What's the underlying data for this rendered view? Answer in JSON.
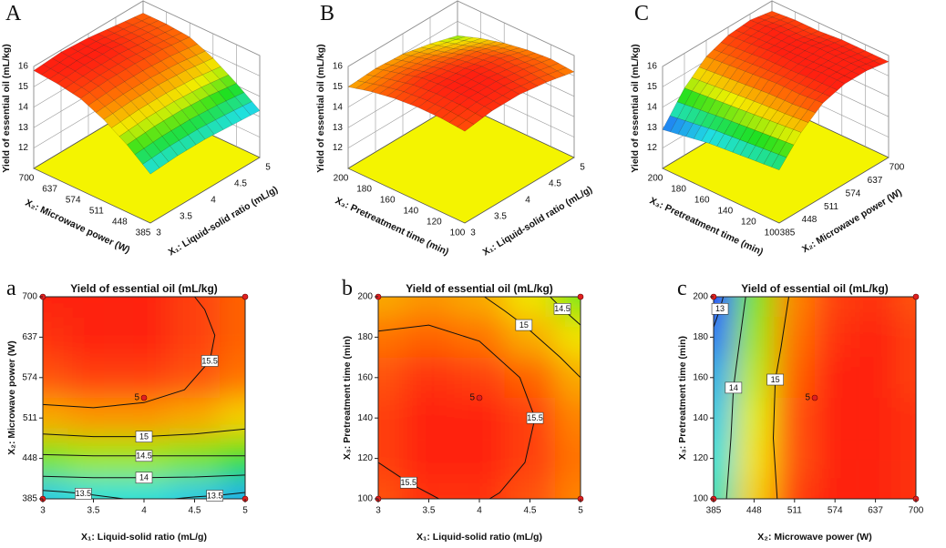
{
  "chart_data": [
    {
      "type": "surface",
      "panel": "A",
      "zlabel": "Yield of essential oil (mL/kg)",
      "xlabel": "X₁: Liquid-solid ratio (mL/g)",
      "ylabel": "X₂: Microwave power (W)",
      "xlim": [
        3,
        5
      ],
      "xticks": [
        3,
        3.5,
        4,
        4.5,
        5
      ],
      "ylim": [
        385,
        700
      ],
      "yticks": [
        385,
        448,
        511,
        574,
        637,
        700
      ],
      "zlim": [
        11,
        16
      ],
      "zticks": [
        12,
        13,
        14,
        15,
        16
      ],
      "colormap": [
        "#2040ff",
        "#20e0e0",
        "#20e020",
        "#f0f000",
        "#ff8000",
        "#ff2010"
      ],
      "color_range": [
        12.9,
        15.8
      ],
      "z": [
        [
          13.4,
          13.5,
          13.5,
          13.4,
          13.3
        ],
        [
          14.3,
          14.4,
          14.4,
          14.3,
          14.1
        ],
        [
          15.0,
          15.1,
          15.1,
          15.0,
          14.8
        ],
        [
          15.5,
          15.6,
          15.6,
          15.5,
          15.3
        ],
        [
          15.7,
          15.8,
          15.8,
          15.6,
          15.4
        ],
        [
          15.8,
          15.9,
          15.8,
          15.6,
          15.4
        ]
      ]
    },
    {
      "type": "surface",
      "panel": "B",
      "zlabel": "Yield of essential oil (mL/kg)",
      "xlabel": "X₁: Liquid-solid ratio (mL/g)",
      "ylabel": "X₃: Pretreatment time (min)",
      "xlim": [
        3,
        5
      ],
      "xticks": [
        3,
        3.5,
        4,
        4.5,
        5
      ],
      "ylim": [
        100,
        200
      ],
      "yticks": [
        100,
        120,
        140,
        160,
        180,
        200
      ],
      "zlim": [
        11,
        16
      ],
      "zticks": [
        12,
        13,
        14,
        15,
        16
      ],
      "colormap": [
        "#2040ff",
        "#20e0e0",
        "#20e020",
        "#f0f000",
        "#ff8000",
        "#ff2010"
      ],
      "color_range": [
        12.9,
        15.8
      ],
      "z": [
        [
          15.5,
          15.7,
          15.7,
          15.5,
          15.2
        ],
        [
          15.6,
          15.8,
          15.8,
          15.6,
          15.3
        ],
        [
          15.6,
          15.8,
          15.8,
          15.6,
          15.2
        ],
        [
          15.5,
          15.7,
          15.6,
          15.4,
          15.0
        ],
        [
          15.3,
          15.4,
          15.3,
          15.0,
          14.7
        ],
        [
          15.0,
          15.1,
          15.0,
          14.7,
          14.3
        ]
      ]
    },
    {
      "type": "surface",
      "panel": "C",
      "zlabel": "Yield of essential oil (mL/kg)",
      "xlabel": "X₂: Microwave power (W)",
      "ylabel": "X₃: Pretreatment time (min)",
      "xlim": [
        385,
        700
      ],
      "xticks": [
        385,
        448,
        511,
        574,
        637,
        700
      ],
      "ylim": [
        100,
        200
      ],
      "yticks": [
        100,
        120,
        140,
        160,
        180,
        200
      ],
      "zlim": [
        11,
        16
      ],
      "zticks": [
        12,
        13,
        14,
        15,
        16
      ],
      "colormap": [
        "#2040ff",
        "#20e0e0",
        "#20e020",
        "#f0f000",
        "#ff8000",
        "#ff2010"
      ],
      "color_range": [
        12.9,
        15.8
      ],
      "z": [
        [
          13.6,
          14.8,
          15.6,
          15.9,
          15.9,
          15.7
        ],
        [
          13.5,
          14.7,
          15.5,
          15.9,
          15.9,
          15.7
        ],
        [
          13.4,
          14.6,
          15.5,
          15.8,
          15.9,
          15.7
        ],
        [
          13.3,
          14.5,
          15.4,
          15.8,
          15.8,
          15.6
        ],
        [
          13.1,
          14.4,
          15.3,
          15.7,
          15.8,
          15.6
        ],
        [
          12.9,
          14.3,
          15.2,
          15.6,
          15.7,
          15.5
        ]
      ]
    },
    {
      "type": "contour",
      "panel": "a",
      "title": "Yield of essential oil (mL/kg)",
      "xlabel": "X₁: Liquid-solid ratio (mL/g)",
      "ylabel": "X₂: Microwave power (W)",
      "xlim": [
        3,
        5
      ],
      "xticks": [
        3,
        3.5,
        4,
        4.5,
        5
      ],
      "ylim": [
        385,
        700
      ],
      "yticks": [
        385,
        448,
        511,
        574,
        637,
        700
      ],
      "colormap": [
        "#2040ff",
        "#20e0e0",
        "#20e020",
        "#f0f000",
        "#ff8000",
        "#ff2010"
      ],
      "color_range": [
        12.9,
        15.8
      ],
      "z": [
        [
          13.4,
          13.5,
          13.5,
          13.4,
          13.3
        ],
        [
          14.3,
          14.4,
          14.4,
          14.3,
          14.1
        ],
        [
          15.0,
          15.1,
          15.1,
          15.0,
          14.8
        ],
        [
          15.5,
          15.6,
          15.6,
          15.5,
          15.3
        ],
        [
          15.7,
          15.8,
          15.8,
          15.6,
          15.4
        ],
        [
          15.8,
          15.9,
          15.8,
          15.6,
          15.4
        ]
      ],
      "contours": [
        {
          "level": 15.5,
          "x": [
            3,
            3.5,
            4,
            4.4,
            4.65,
            4.7,
            4.6,
            4.5
          ],
          "y": [
            532,
            527,
            535,
            555,
            600,
            640,
            680,
            700
          ]
        },
        {
          "level": 15,
          "x": [
            3,
            3.5,
            4,
            4.5,
            5
          ],
          "y": [
            486,
            482,
            482,
            486,
            494
          ]
        },
        {
          "level": 14.5,
          "x": [
            3,
            3.5,
            4,
            4.5,
            5
          ],
          "y": [
            454,
            452,
            452,
            452,
            452
          ]
        },
        {
          "level": 14,
          "x": [
            3,
            3.5,
            4,
            4.5,
            5
          ],
          "y": [
            420,
            418,
            418,
            419,
            422
          ]
        },
        {
          "level": 13.5,
          "x": [
            3,
            3.2,
            3.4,
            3.8,
            null,
            4.3,
            4.5,
            4.7,
            5
          ],
          "y": [
            398,
            396,
            393,
            385,
            null,
            385,
            388,
            390,
            395
          ]
        }
      ],
      "design_points": {
        "x": [
          3,
          5,
          3,
          5,
          4
        ],
        "y": [
          385,
          385,
          700,
          700,
          542.5
        ]
      },
      "center_runs": 5
    },
    {
      "type": "contour",
      "panel": "b",
      "title": "Yield of essential oil (mL/kg)",
      "xlabel": "X₁: Liquid-solid ratio (mL/g)",
      "ylabel": "X₃: Pretreatment time (min)",
      "xlim": [
        3,
        5
      ],
      "xticks": [
        3,
        3.5,
        4,
        4.5,
        5
      ],
      "ylim": [
        100,
        200
      ],
      "yticks": [
        100,
        120,
        140,
        160,
        180,
        200
      ],
      "colormap": [
        "#2040ff",
        "#20e0e0",
        "#20e020",
        "#f0f000",
        "#ff8000",
        "#ff2010"
      ],
      "color_range": [
        12.9,
        15.8
      ],
      "z": [
        [
          15.5,
          15.7,
          15.7,
          15.5,
          15.2
        ],
        [
          15.6,
          15.8,
          15.8,
          15.6,
          15.3
        ],
        [
          15.6,
          15.8,
          15.8,
          15.6,
          15.2
        ],
        [
          15.5,
          15.7,
          15.6,
          15.4,
          15.0
        ],
        [
          15.3,
          15.4,
          15.3,
          15.0,
          14.7
        ],
        [
          15.0,
          15.1,
          15.0,
          14.7,
          14.3
        ]
      ],
      "contours": [
        {
          "level": 15.5,
          "x": [
            3,
            3.5,
            4,
            4.4,
            4.55,
            4.45,
            4.2,
            4.1,
            null,
            3.6,
            3.3,
            3
          ],
          "y": [
            183,
            186,
            178,
            160,
            140,
            118,
            103,
            100,
            null,
            100,
            108,
            118
          ]
        },
        {
          "level": 15,
          "x": [
            4.05,
            4.25,
            4.44,
            4.8,
            5
          ],
          "y": [
            200,
            193,
            186,
            170,
            160
          ]
        },
        {
          "level": 14.5,
          "x": [
            4.7,
            4.82,
            5
          ],
          "y": [
            200,
            194,
            186
          ]
        }
      ],
      "design_points": {
        "x": [
          3,
          5,
          3,
          5,
          4
        ],
        "y": [
          100,
          100,
          200,
          200,
          150
        ]
      },
      "center_runs": 5
    },
    {
      "type": "contour",
      "panel": "c",
      "title": "Yield of essential oil (mL/kg)",
      "xlabel": "X₂: Microwave power (W)",
      "ylabel": "X₃: Pretreatment time (min)",
      "xlim": [
        385,
        700
      ],
      "xticks": [
        385,
        448,
        511,
        574,
        637,
        700
      ],
      "ylim": [
        100,
        200
      ],
      "yticks": [
        100,
        120,
        140,
        160,
        180,
        200
      ],
      "colormap": [
        "#2040ff",
        "#20e0e0",
        "#20e020",
        "#f0f000",
        "#ff8000",
        "#ff2010"
      ],
      "color_range": [
        12.9,
        15.8
      ],
      "z": [
        [
          13.6,
          14.8,
          15.6,
          15.9,
          15.9,
          15.7
        ],
        [
          13.5,
          14.7,
          15.5,
          15.9,
          15.9,
          15.7
        ],
        [
          13.4,
          14.6,
          15.5,
          15.8,
          15.9,
          15.7
        ],
        [
          13.3,
          14.5,
          15.4,
          15.8,
          15.8,
          15.6
        ],
        [
          13.1,
          14.4,
          15.3,
          15.7,
          15.8,
          15.6
        ],
        [
          12.9,
          14.3,
          15.2,
          15.6,
          15.7,
          15.5
        ]
      ],
      "contours": [
        {
          "level": 13,
          "x": [
            385,
            395,
            400
          ],
          "y": [
            185,
            194,
            200
          ]
        },
        {
          "level": 14,
          "x": [
            435,
            420,
            416,
            412,
            405
          ],
          "y": [
            200,
            165,
            155,
            130,
            100
          ]
        },
        {
          "level": 15,
          "x": [
            502,
            490,
            481,
            478,
            484
          ],
          "y": [
            200,
            175,
            159,
            130,
            100
          ]
        }
      ],
      "design_points": {
        "x": [
          385,
          700,
          385,
          700,
          542.5
        ],
        "y": [
          100,
          100,
          200,
          200,
          150
        ]
      },
      "center_runs": 5
    }
  ]
}
